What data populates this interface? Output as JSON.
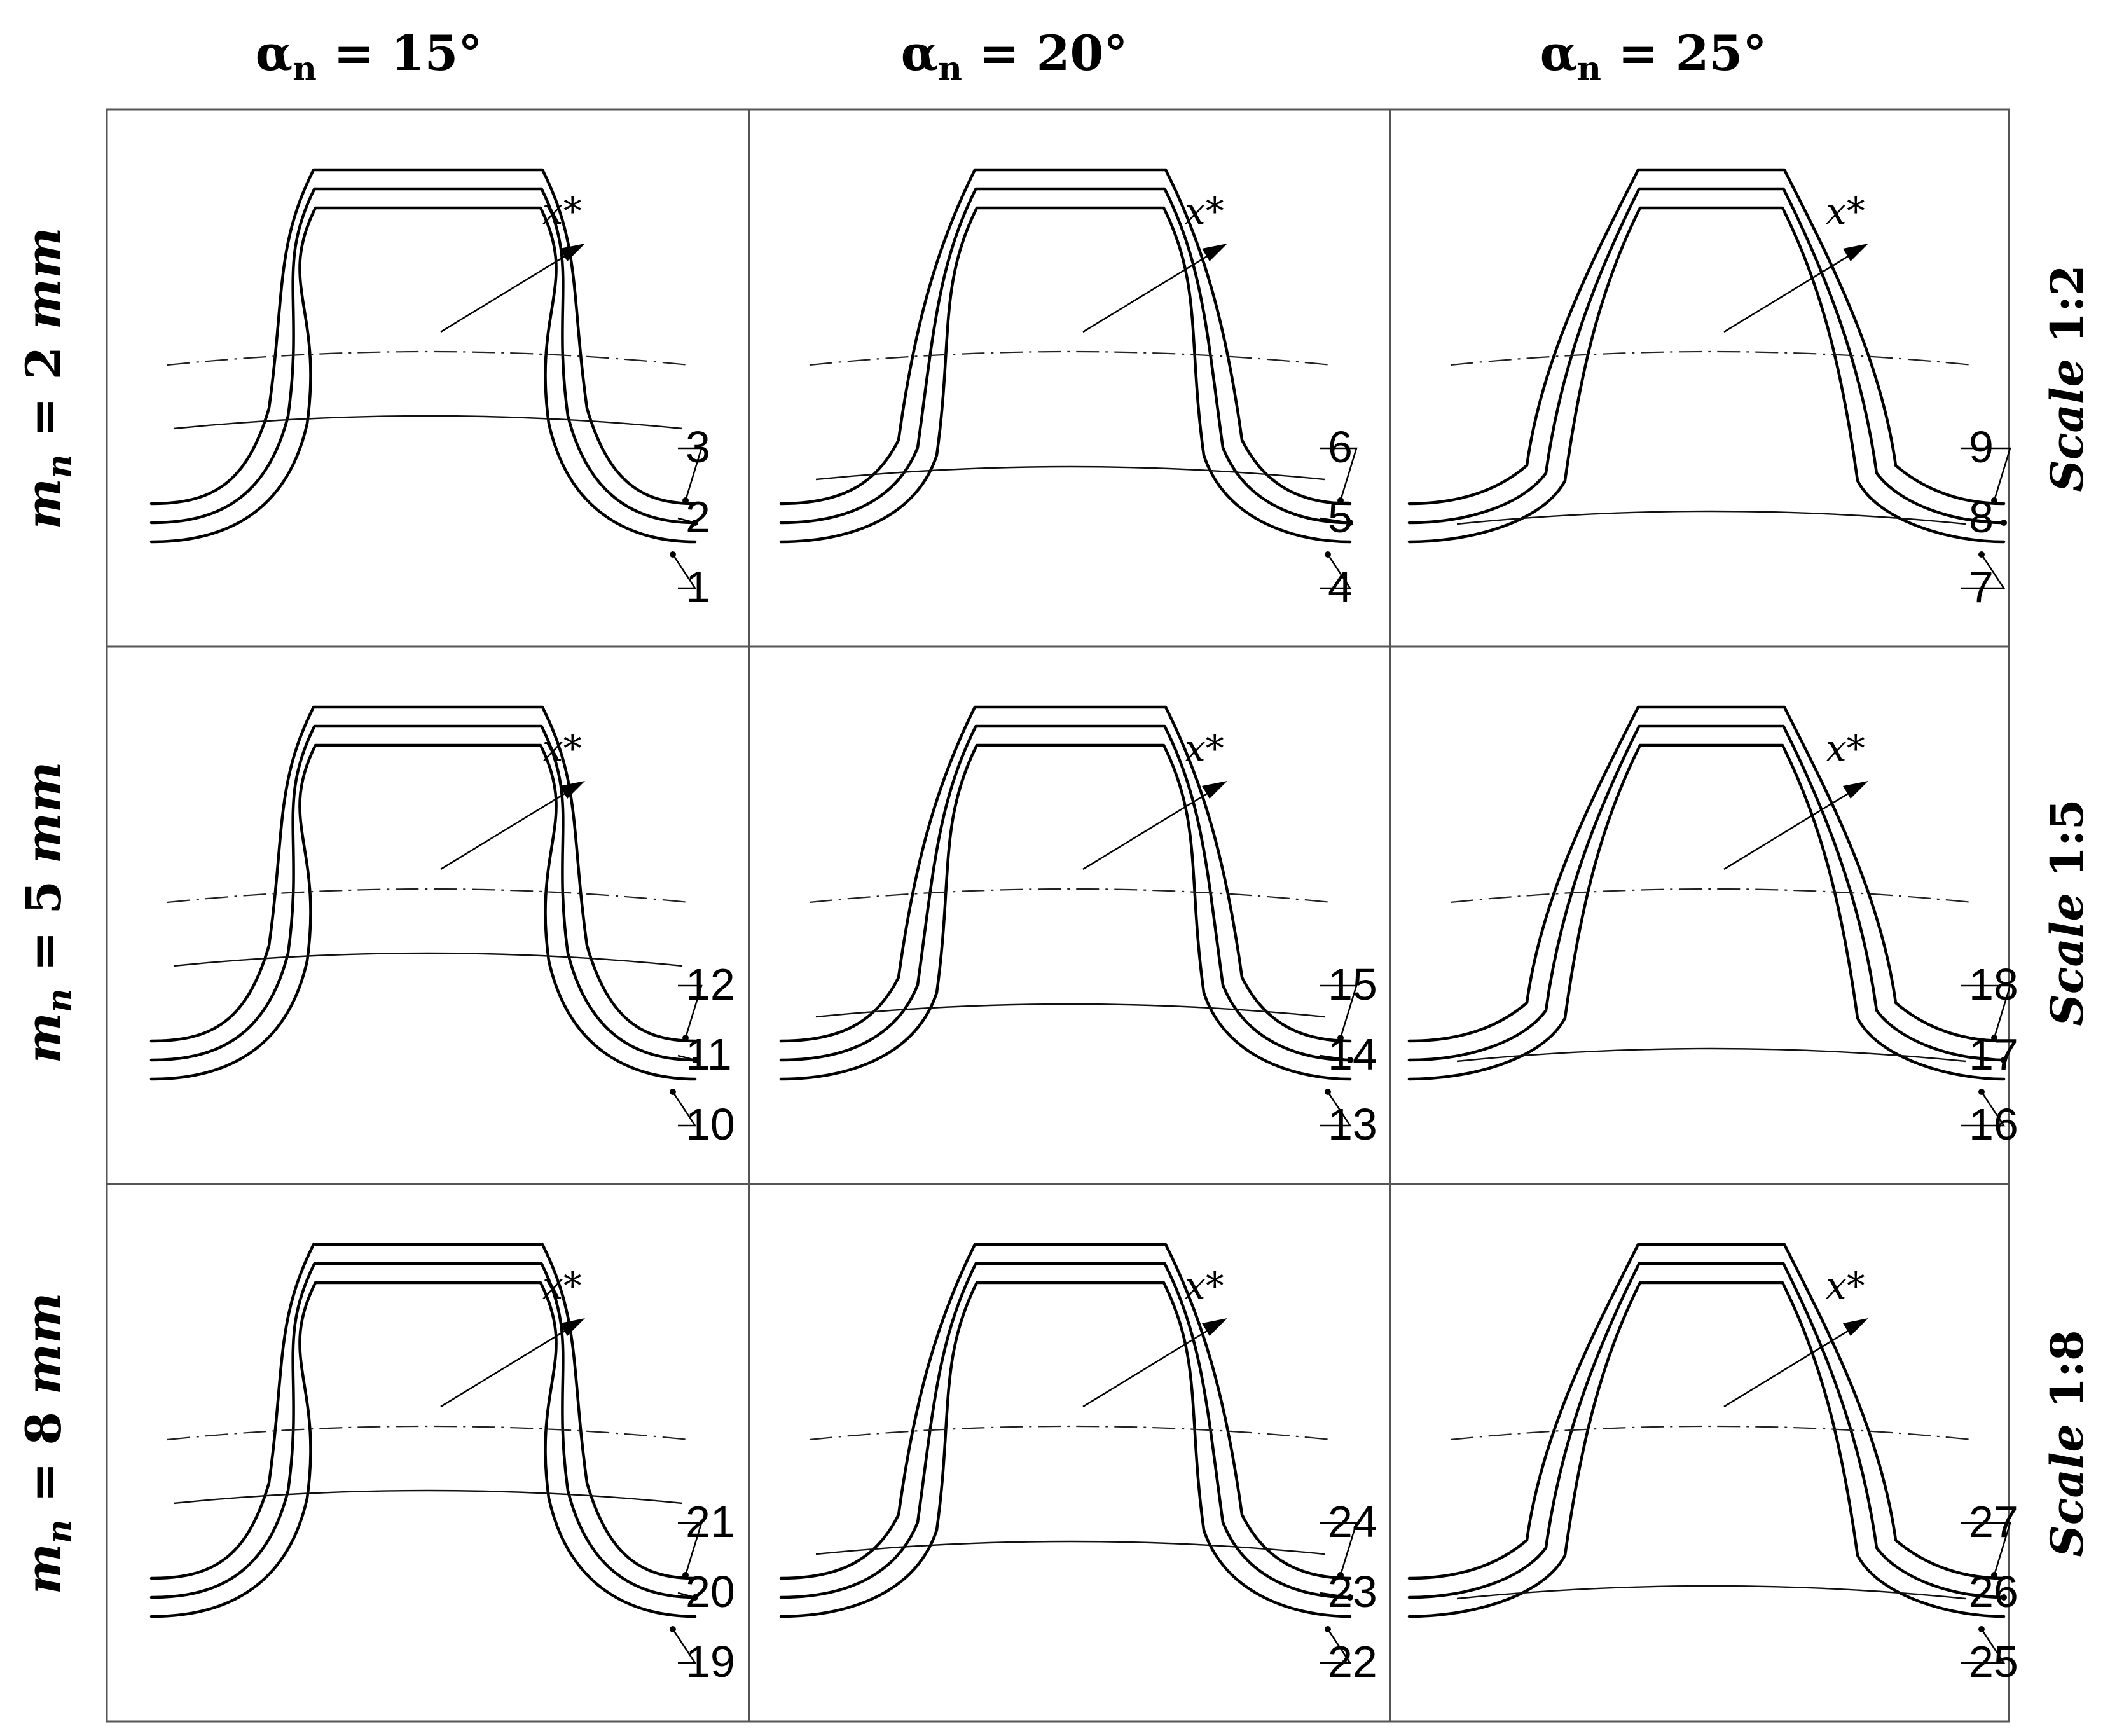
{
  "figure_title": "",
  "column_headers": [
    {
      "symbol": "α",
      "subscript": "n",
      "rest": " = 15°"
    },
    {
      "symbol": "α",
      "subscript": "n",
      "rest": " = 20°"
    },
    {
      "symbol": "α",
      "subscript": "n",
      "rest": " = 25°"
    }
  ],
  "row_headers": [
    {
      "symbol": "m",
      "subscript": "n",
      "rest": " = 2 ",
      "unit": "mm"
    },
    {
      "symbol": "m",
      "subscript": "n",
      "rest": " = 5 ",
      "unit": "mm"
    },
    {
      "symbol": "m",
      "subscript": "n",
      "rest": " = 8 ",
      "unit": "mm"
    }
  ],
  "scales": [
    {
      "word": "Scale",
      "ratio": " 1:2"
    },
    {
      "word": "Scale",
      "ratio": " 1:5"
    },
    {
      "word": "Scale",
      "ratio": " 1:8"
    }
  ],
  "x_label": "x*",
  "cells": [
    {
      "pressure_angle_deg": 15,
      "module_mm": 2,
      "labels": [
        "3",
        "2",
        "1"
      ]
    },
    {
      "pressure_angle_deg": 20,
      "module_mm": 2,
      "labels": [
        "6",
        "5",
        "4"
      ]
    },
    {
      "pressure_angle_deg": 25,
      "module_mm": 2,
      "labels": [
        "9",
        "8",
        "7"
      ]
    },
    {
      "pressure_angle_deg": 15,
      "module_mm": 5,
      "labels": [
        "12",
        "11",
        "10"
      ]
    },
    {
      "pressure_angle_deg": 20,
      "module_mm": 5,
      "labels": [
        "15",
        "14",
        "13"
      ]
    },
    {
      "pressure_angle_deg": 25,
      "module_mm": 5,
      "labels": [
        "18",
        "17",
        "16"
      ]
    },
    {
      "pressure_angle_deg": 15,
      "module_mm": 8,
      "labels": [
        "21",
        "20",
        "19"
      ]
    },
    {
      "pressure_angle_deg": 20,
      "module_mm": 8,
      "labels": [
        "24",
        "23",
        "22"
      ]
    },
    {
      "pressure_angle_deg": 25,
      "module_mm": 8,
      "labels": [
        "27",
        "26",
        "25"
      ]
    }
  ]
}
